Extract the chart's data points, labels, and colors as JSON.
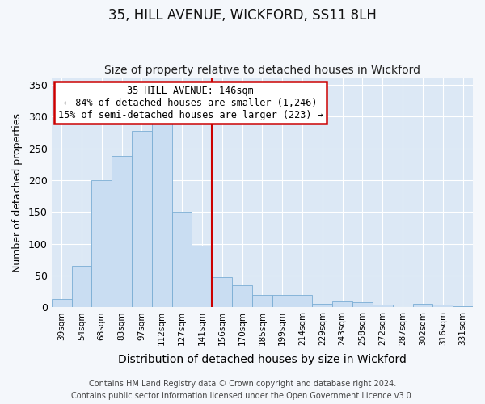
{
  "title": "35, HILL AVENUE, WICKFORD, SS11 8LH",
  "subtitle": "Size of property relative to detached houses in Wickford",
  "xlabel": "Distribution of detached houses by size in Wickford",
  "ylabel": "Number of detached properties",
  "categories": [
    "39sqm",
    "54sqm",
    "68sqm",
    "83sqm",
    "97sqm",
    "112sqm",
    "127sqm",
    "141sqm",
    "156sqm",
    "170sqm",
    "185sqm",
    "199sqm",
    "214sqm",
    "229sqm",
    "243sqm",
    "258sqm",
    "272sqm",
    "287sqm",
    "302sqm",
    "316sqm",
    "331sqm"
  ],
  "values": [
    13,
    65,
    200,
    238,
    278,
    290,
    150,
    97,
    48,
    35,
    19,
    20,
    20,
    5,
    9,
    8,
    4,
    0,
    5,
    4,
    2
  ],
  "bar_color": "#c9ddf2",
  "bar_edge_color": "#7aadd4",
  "vline_color": "#cc0000",
  "annotation_title": "35 HILL AVENUE: 146sqm",
  "annotation_line1": "← 84% of detached houses are smaller (1,246)",
  "annotation_line2": "15% of semi-detached houses are larger (223) →",
  "annotation_box_facecolor": "#ffffff",
  "annotation_box_edgecolor": "#cc0000",
  "ylim": [
    0,
    360
  ],
  "yticks": [
    0,
    50,
    100,
    150,
    200,
    250,
    300,
    350
  ],
  "axes_facecolor": "#dce8f5",
  "fig_facecolor": "#f4f7fb",
  "grid_color": "#ffffff",
  "footer_line1": "Contains HM Land Registry data © Crown copyright and database right 2024.",
  "footer_line2": "Contains public sector information licensed under the Open Government Licence v3.0.",
  "title_fontsize": 12,
  "subtitle_fontsize": 10,
  "xlabel_fontsize": 10,
  "ylabel_fontsize": 9,
  "footer_fontsize": 7
}
